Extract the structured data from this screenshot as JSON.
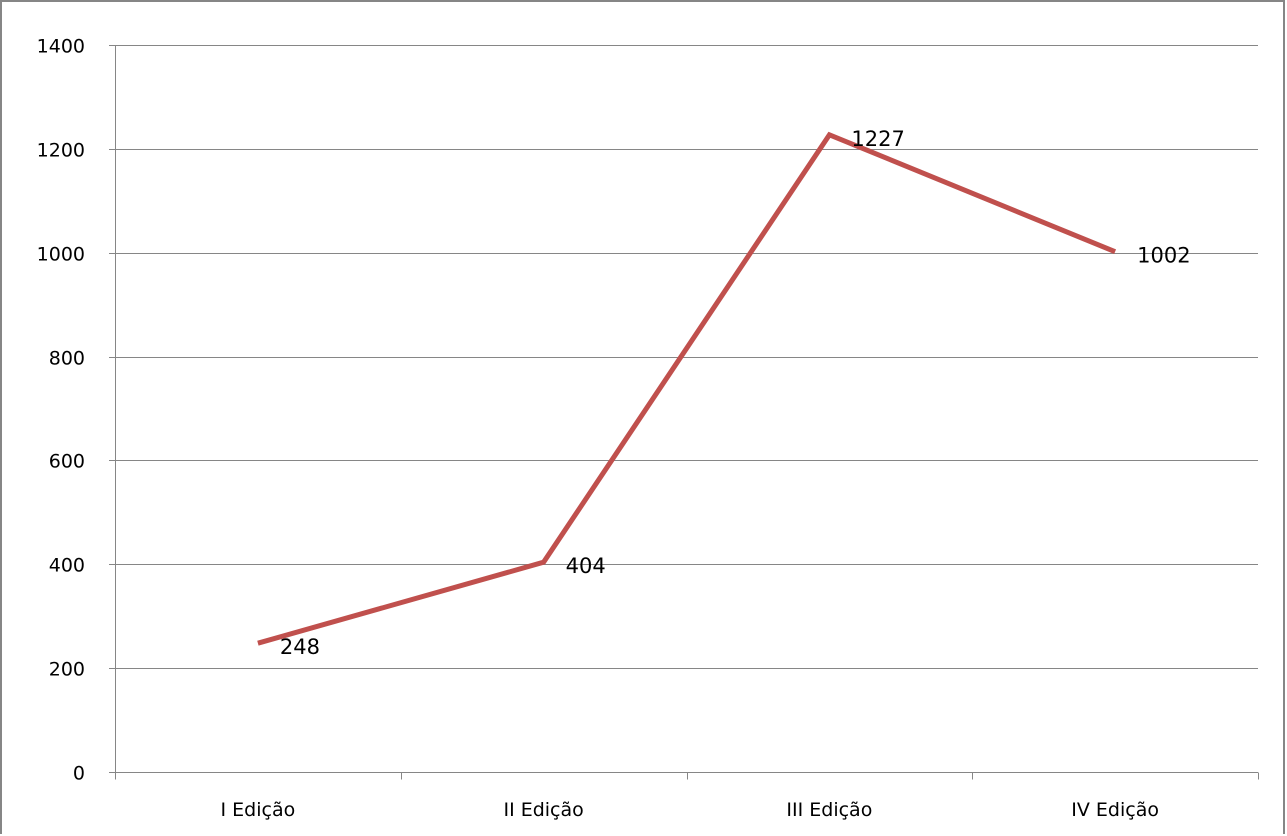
{
  "chart_data": {
    "type": "line",
    "title": "",
    "xlabel": "",
    "ylabel": "",
    "categories": [
      "I Edição",
      "II Edição",
      "III Edição",
      "IV Edição"
    ],
    "series": [
      {
        "values": [
          248,
          404,
          1227,
          1002
        ],
        "color": "#c0504d"
      }
    ],
    "data_labels": [
      "248",
      "404",
      "1227",
      "1002"
    ],
    "ylim": [
      0,
      1400
    ],
    "y_ticks": [
      0,
      200,
      400,
      600,
      800,
      1000,
      1200,
      1400
    ],
    "grid": true,
    "legend": "none"
  }
}
